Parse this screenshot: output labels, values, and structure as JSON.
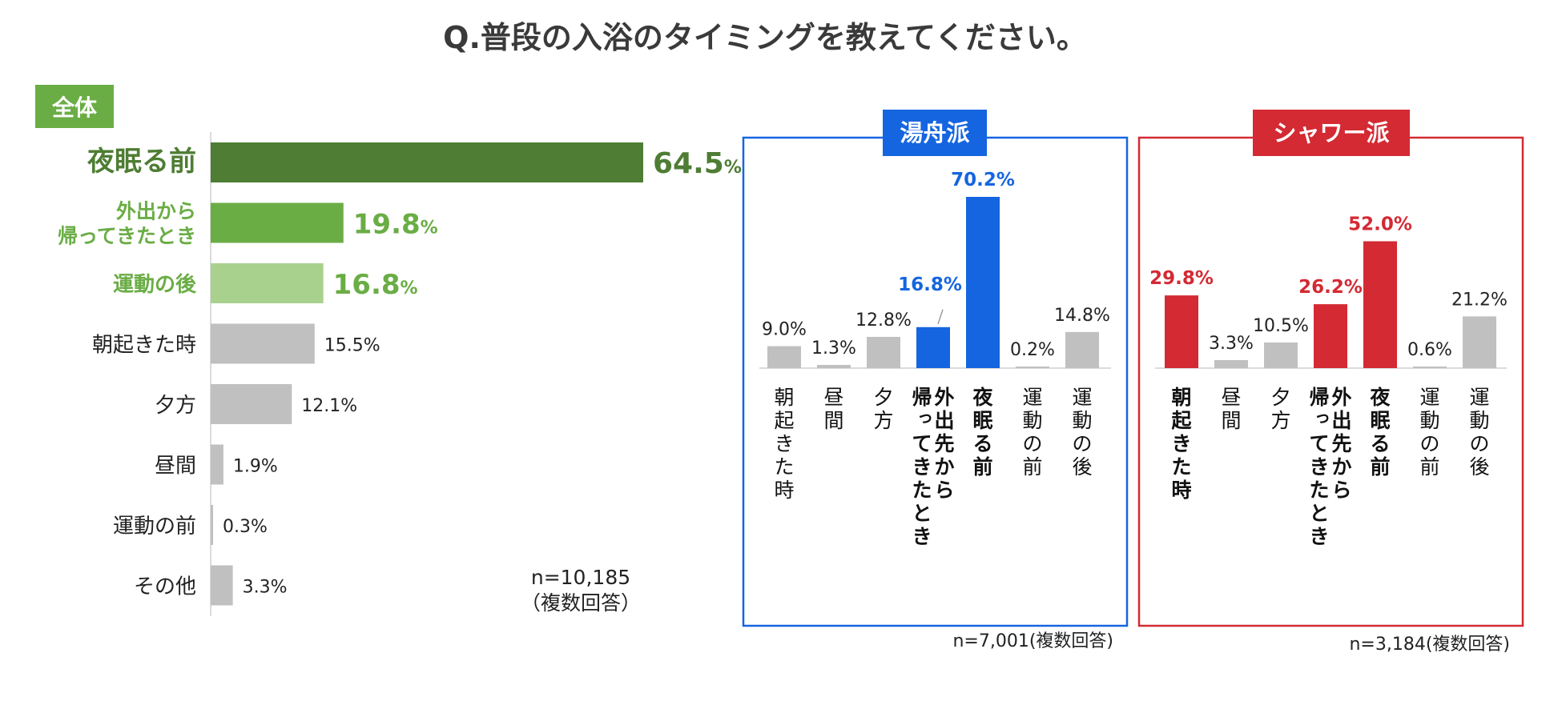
{
  "title": "Q.普段の入浴のタイミングを教えてください。",
  "colors": {
    "green_dark": "#4e7d33",
    "green_mid": "#6aad45",
    "green_light": "#a9d18e",
    "gray_bar": "#c0c0c0",
    "blue": "#1565e0",
    "red": "#d42a33",
    "text": "#222222"
  },
  "chart_data": [
    {
      "type": "bar",
      "orientation": "horizontal",
      "tag": "全体",
      "categories": [
        "夜眠る前",
        "外出から帰ってきたとき",
        "運動の後",
        "朝起きた時",
        "夕方",
        "昼間",
        "運動の前",
        "その他"
      ],
      "category_lines": [
        [
          "夜眠る前"
        ],
        [
          "外出から",
          "帰ってきたとき"
        ],
        [
          "運動の後"
        ],
        [
          "朝起きた時"
        ],
        [
          "夕方"
        ],
        [
          "昼間"
        ],
        [
          "運動の前"
        ],
        [
          "その他"
        ]
      ],
      "values": [
        64.5,
        19.8,
        16.8,
        15.5,
        12.1,
        1.9,
        0.3,
        3.3
      ],
      "unit": "%",
      "highlight": [
        "green_dark",
        "green_mid",
        "green_light",
        null,
        null,
        null,
        null,
        null
      ],
      "n_label": "n=10,185",
      "n_note": "（複数回答）"
    },
    {
      "type": "bar",
      "orientation": "vertical",
      "tag": "湯舟派",
      "accent": "blue",
      "categories": [
        "朝起きた時",
        "昼間",
        "夕方",
        "外出先から帰ってきたとき",
        "夜眠る前",
        "運動の前",
        "運動の後"
      ],
      "category_columns": [
        [
          "朝起きた時"
        ],
        [
          "昼間"
        ],
        [
          "夕方"
        ],
        [
          "外出先から",
          "帰ってきたとき"
        ],
        [
          "夜眠る前"
        ],
        [
          "運動の前"
        ],
        [
          "運動の後"
        ]
      ],
      "values": [
        9.0,
        1.3,
        12.8,
        16.8,
        70.2,
        0.2,
        14.8
      ],
      "unit": "%",
      "highlight": [
        false,
        false,
        false,
        true,
        true,
        false,
        false
      ],
      "n_label": "n=7,001(複数回答)"
    },
    {
      "type": "bar",
      "orientation": "vertical",
      "tag": "シャワー派",
      "accent": "red",
      "categories": [
        "朝起きた時",
        "昼間",
        "夕方",
        "外出先から帰ってきたとき",
        "夜眠る前",
        "運動の前",
        "運動の後"
      ],
      "category_columns": [
        [
          "朝起きた時"
        ],
        [
          "昼間"
        ],
        [
          "夕方"
        ],
        [
          "外出先から",
          "帰ってきたとき"
        ],
        [
          "夜眠る前"
        ],
        [
          "運動の前"
        ],
        [
          "運動の後"
        ]
      ],
      "values": [
        29.8,
        3.3,
        10.5,
        26.2,
        52.0,
        0.6,
        21.2
      ],
      "unit": "%",
      "highlight": [
        true,
        false,
        false,
        true,
        true,
        false,
        false
      ],
      "n_label": "n=3,184(複数回答)"
    }
  ]
}
